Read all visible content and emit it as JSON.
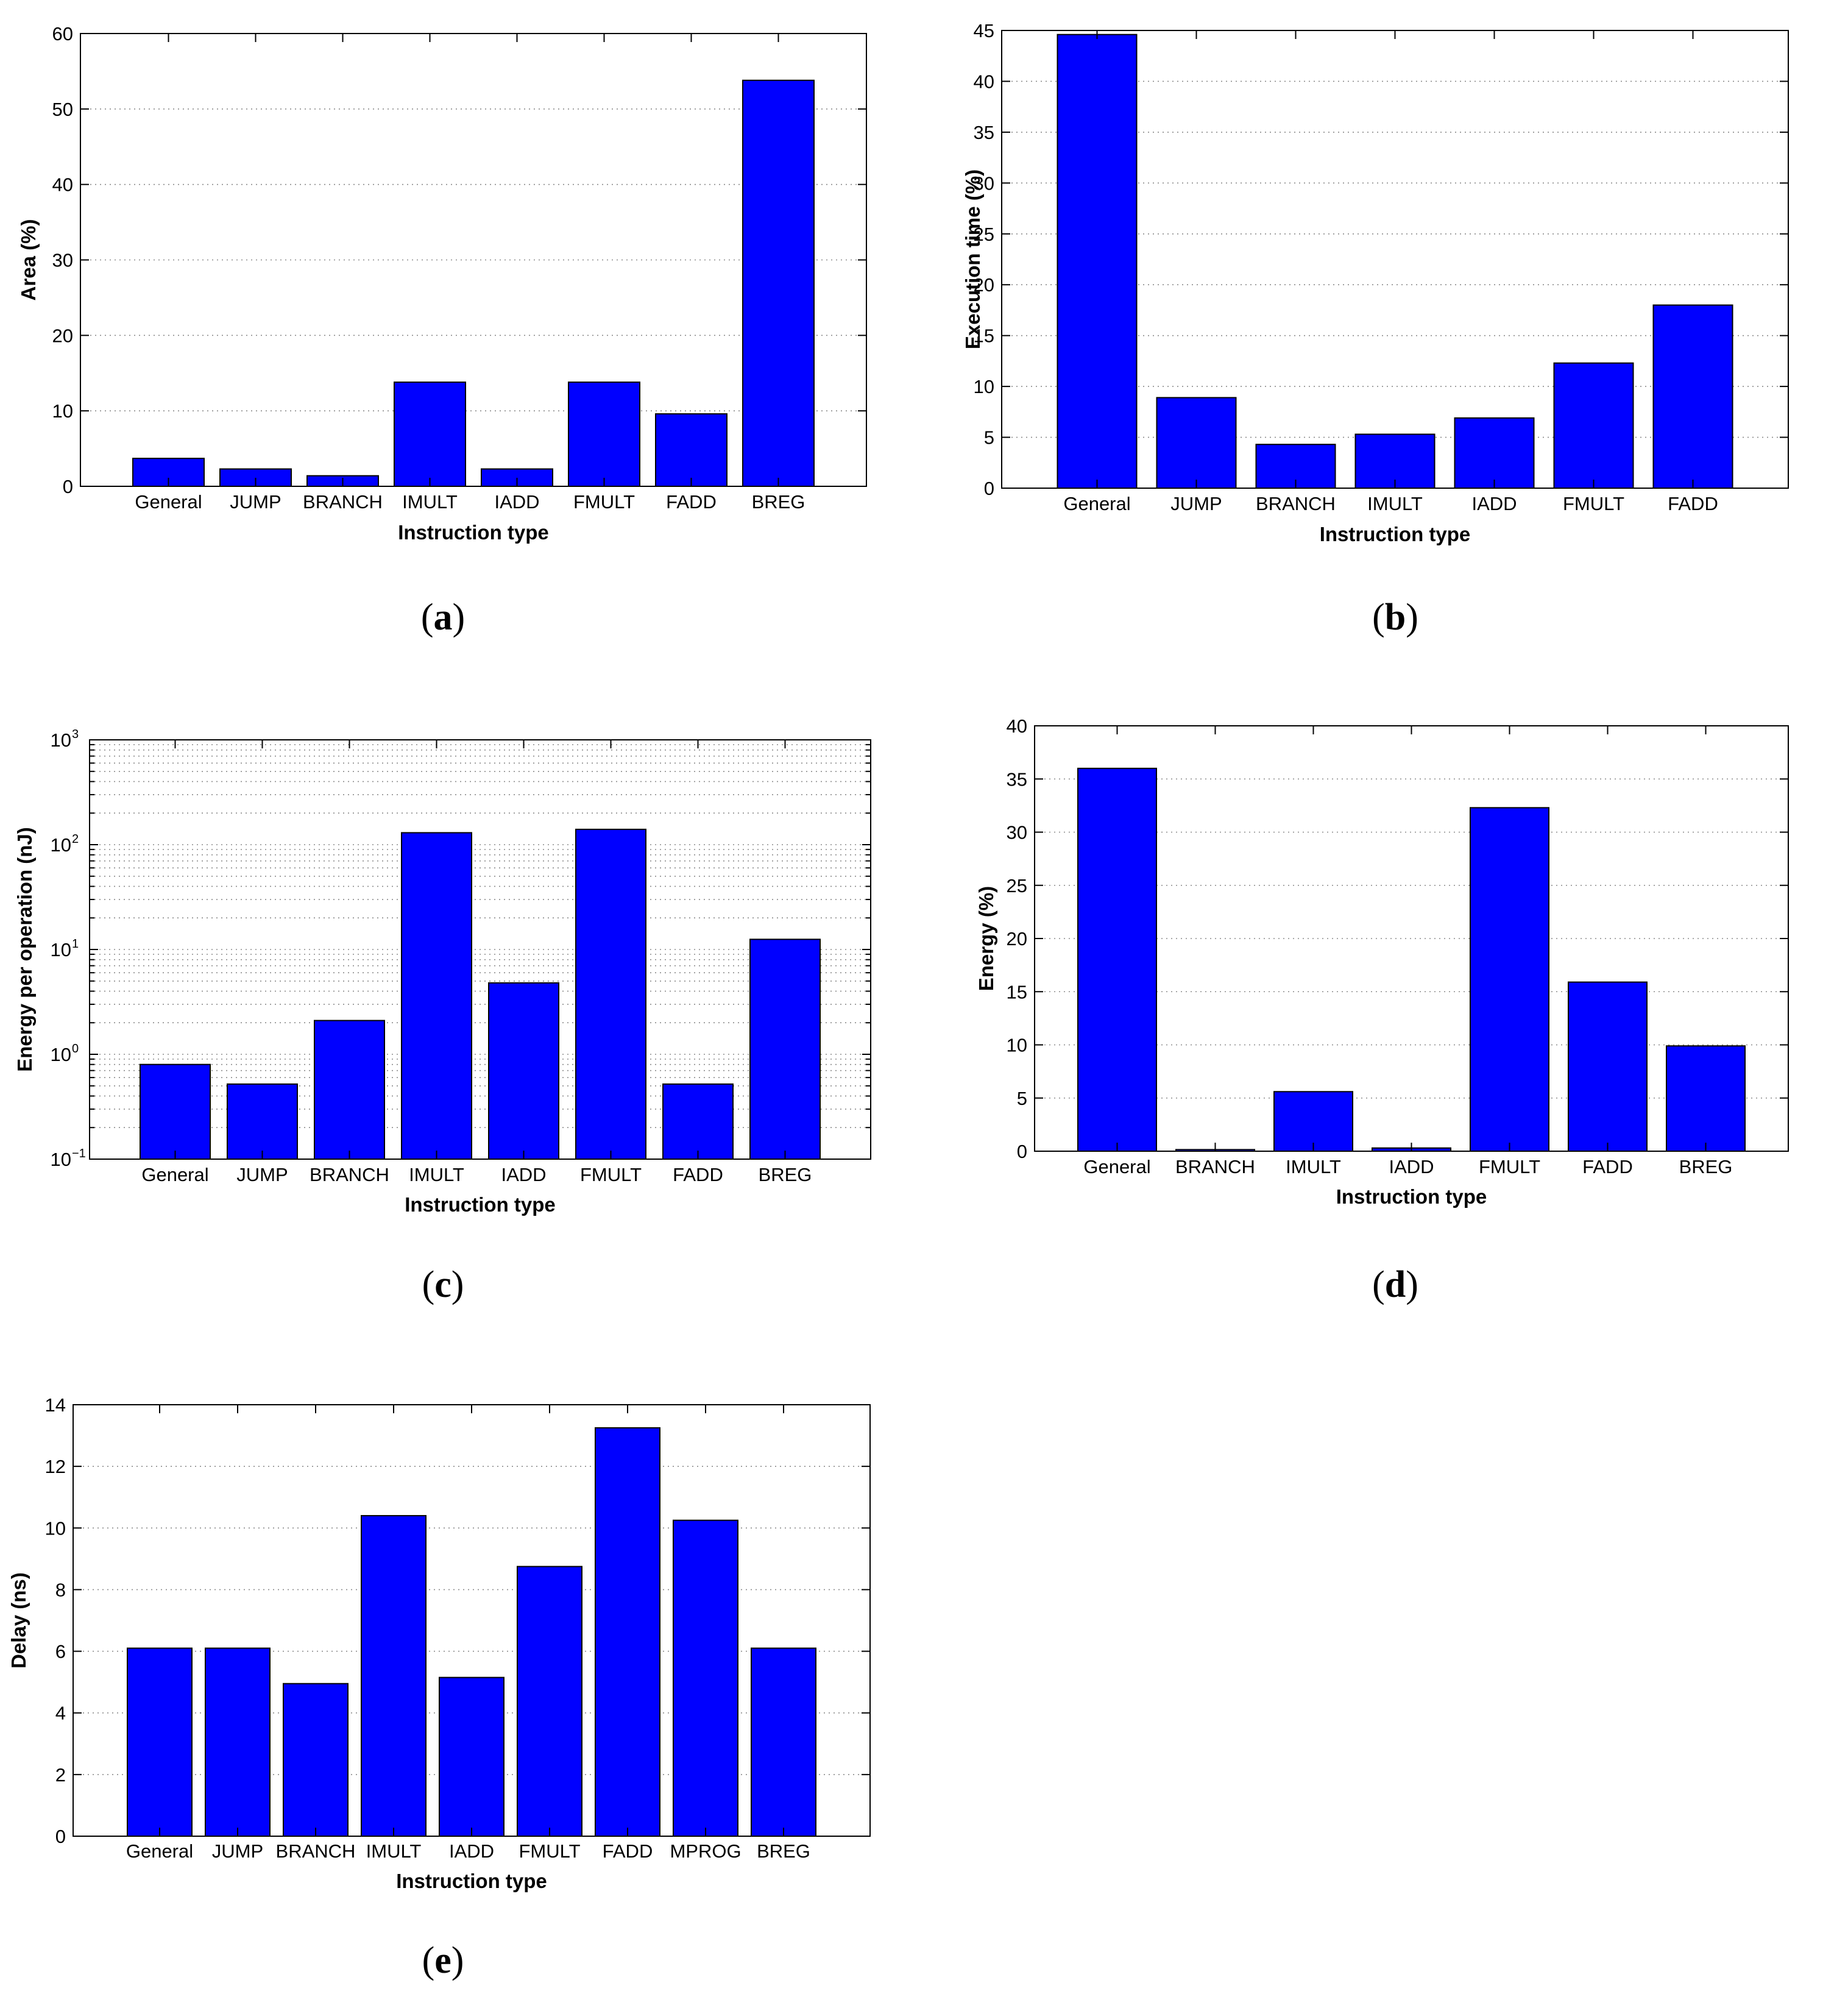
{
  "chart_data": [
    {
      "id": "a",
      "type": "bar",
      "panel_label": "a",
      "xlabel": "Instruction type",
      "ylabel": "Area (%)",
      "categories": [
        "General",
        "JUMP",
        "BRANCH",
        "IMULT",
        "IADD",
        "FMULT",
        "FADD",
        "BREG"
      ],
      "values": [
        3.7,
        2.3,
        1.4,
        13.8,
        2.3,
        13.8,
        9.6,
        53.8
      ],
      "ylim": [
        0,
        60
      ],
      "yticks": [
        0,
        10,
        20,
        30,
        40,
        50,
        60
      ],
      "yscale": "linear",
      "grid": true,
      "color": "#0000ff"
    },
    {
      "id": "b",
      "type": "bar",
      "panel_label": "b",
      "xlabel": "Instruction type",
      "ylabel": "Execution time (%)",
      "categories": [
        "General",
        "JUMP",
        "BRANCH",
        "IMULT",
        "IADD",
        "FMULT",
        "FADD"
      ],
      "values": [
        44.6,
        8.9,
        4.3,
        5.3,
        6.9,
        12.3,
        18.0
      ],
      "ylim": [
        0,
        45
      ],
      "yticks": [
        0,
        5,
        10,
        15,
        20,
        25,
        30,
        35,
        40,
        45
      ],
      "yscale": "linear",
      "grid": true,
      "color": "#0000ff"
    },
    {
      "id": "c",
      "type": "bar",
      "panel_label": "c",
      "xlabel": "Instruction type",
      "ylabel": "Energy per operation (nJ)",
      "categories": [
        "General",
        "JUMP",
        "BRANCH",
        "IMULT",
        "IADD",
        "FMULT",
        "FADD",
        "BREG"
      ],
      "values": [
        0.8,
        0.52,
        2.1,
        130,
        4.8,
        140,
        0.52,
        12.5
      ],
      "ylim": [
        0.1,
        1000
      ],
      "ytick_exponents": [
        -1,
        0,
        1,
        2,
        3
      ],
      "ytick_base": "10",
      "yscale": "log",
      "grid": true,
      "color": "#0000ff"
    },
    {
      "id": "d",
      "type": "bar",
      "panel_label": "d",
      "xlabel": "Instruction type",
      "ylabel": "Energy (%)",
      "categories": [
        "General",
        "BRANCH",
        "IMULT",
        "IADD",
        "FMULT",
        "FADD",
        "BREG"
      ],
      "values": [
        36.0,
        0.15,
        5.6,
        0.3,
        32.3,
        15.9,
        9.9
      ],
      "ylim": [
        0,
        40
      ],
      "yticks": [
        0,
        5,
        10,
        15,
        20,
        25,
        30,
        35,
        40
      ],
      "yscale": "linear",
      "grid": true,
      "color": "#0000ff"
    },
    {
      "id": "e",
      "type": "bar",
      "panel_label": "e",
      "xlabel": "Instruction type",
      "ylabel": "Delay (ns)",
      "categories": [
        "General",
        "JUMP",
        "BRANCH",
        "IMULT",
        "IADD",
        "FMULT",
        "FADD",
        "MPROG",
        "BREG"
      ],
      "values": [
        6.1,
        6.1,
        4.95,
        10.4,
        5.15,
        8.75,
        13.25,
        10.25,
        6.1
      ],
      "ylim": [
        0,
        14
      ],
      "yticks": [
        0,
        2,
        4,
        6,
        8,
        10,
        12,
        14
      ],
      "yscale": "linear",
      "grid": true,
      "color": "#0000ff"
    }
  ]
}
